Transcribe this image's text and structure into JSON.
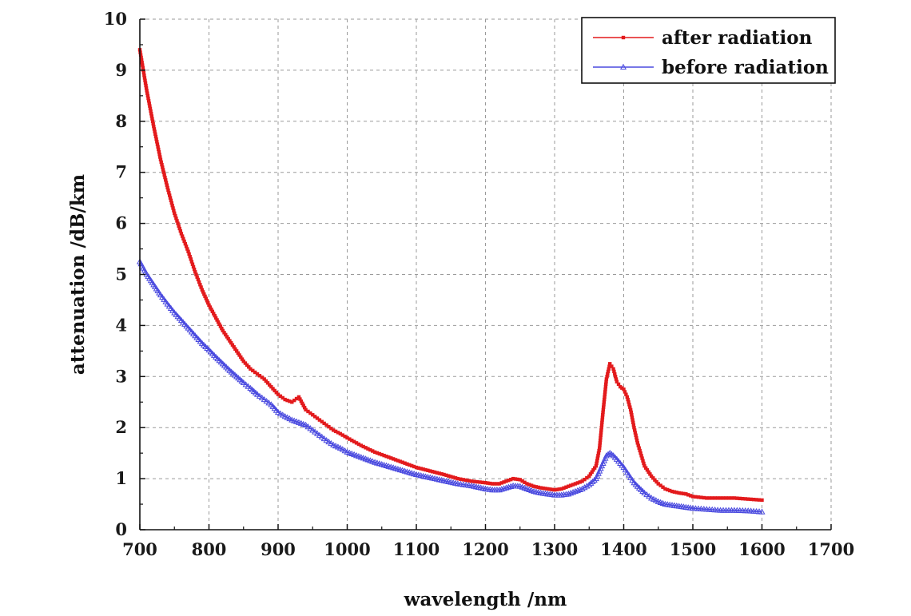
{
  "chart_data": {
    "type": "line",
    "xlabel": "wavelength /nm",
    "ylabel": "attenuation /dB/km",
    "xlim": [
      700,
      1700
    ],
    "ylim": [
      0,
      10
    ],
    "xticks": [
      700,
      800,
      900,
      1000,
      1100,
      1200,
      1300,
      1400,
      1500,
      1600,
      1700
    ],
    "yticks": [
      0,
      1,
      2,
      3,
      4,
      5,
      6,
      7,
      8,
      9,
      10
    ],
    "grid": true,
    "legend_position": "top-right",
    "x": [
      700,
      710,
      720,
      730,
      740,
      750,
      760,
      770,
      780,
      790,
      800,
      810,
      820,
      830,
      840,
      850,
      860,
      870,
      880,
      890,
      900,
      910,
      920,
      930,
      940,
      950,
      960,
      970,
      980,
      990,
      1000,
      1020,
      1040,
      1060,
      1080,
      1100,
      1120,
      1140,
      1160,
      1180,
      1200,
      1210,
      1220,
      1230,
      1240,
      1250,
      1260,
      1270,
      1280,
      1290,
      1300,
      1310,
      1320,
      1330,
      1340,
      1350,
      1360,
      1365,
      1370,
      1375,
      1380,
      1385,
      1390,
      1395,
      1400,
      1405,
      1410,
      1415,
      1420,
      1430,
      1440,
      1450,
      1460,
      1470,
      1480,
      1490,
      1500,
      1520,
      1540,
      1560,
      1580,
      1600
    ],
    "series": [
      {
        "name": "after radiation",
        "color": "#e31a1c",
        "marker": "square",
        "values": [
          9.4,
          8.6,
          7.9,
          7.25,
          6.7,
          6.2,
          5.8,
          5.45,
          5.05,
          4.7,
          4.4,
          4.15,
          3.9,
          3.7,
          3.5,
          3.3,
          3.15,
          3.05,
          2.95,
          2.8,
          2.65,
          2.55,
          2.5,
          2.6,
          2.35,
          2.25,
          2.15,
          2.05,
          1.95,
          1.88,
          1.8,
          1.65,
          1.52,
          1.42,
          1.32,
          1.22,
          1.15,
          1.08,
          1.0,
          0.95,
          0.92,
          0.9,
          0.9,
          0.95,
          1.0,
          0.98,
          0.9,
          0.85,
          0.82,
          0.8,
          0.78,
          0.8,
          0.85,
          0.9,
          0.95,
          1.05,
          1.25,
          1.6,
          2.3,
          2.95,
          3.25,
          3.15,
          2.9,
          2.8,
          2.75,
          2.6,
          2.35,
          2.0,
          1.7,
          1.25,
          1.05,
          0.9,
          0.8,
          0.75,
          0.72,
          0.7,
          0.65,
          0.62,
          0.62,
          0.62,
          0.6,
          0.58
        ]
      },
      {
        "name": "before radiation",
        "color": "#4a4adf",
        "marker": "triangle",
        "values": [
          5.25,
          5.0,
          4.8,
          4.6,
          4.42,
          4.25,
          4.1,
          3.95,
          3.8,
          3.65,
          3.52,
          3.38,
          3.25,
          3.12,
          3.0,
          2.88,
          2.77,
          2.65,
          2.55,
          2.45,
          2.3,
          2.22,
          2.15,
          2.1,
          2.05,
          1.95,
          1.85,
          1.75,
          1.66,
          1.6,
          1.52,
          1.42,
          1.32,
          1.24,
          1.16,
          1.08,
          1.02,
          0.96,
          0.9,
          0.86,
          0.8,
          0.78,
          0.78,
          0.82,
          0.86,
          0.85,
          0.8,
          0.75,
          0.72,
          0.7,
          0.68,
          0.68,
          0.7,
          0.75,
          0.8,
          0.88,
          1.0,
          1.15,
          1.3,
          1.45,
          1.5,
          1.45,
          1.38,
          1.3,
          1.22,
          1.12,
          1.02,
          0.92,
          0.85,
          0.72,
          0.62,
          0.55,
          0.5,
          0.48,
          0.46,
          0.44,
          0.42,
          0.4,
          0.38,
          0.38,
          0.37,
          0.35
        ]
      }
    ]
  }
}
